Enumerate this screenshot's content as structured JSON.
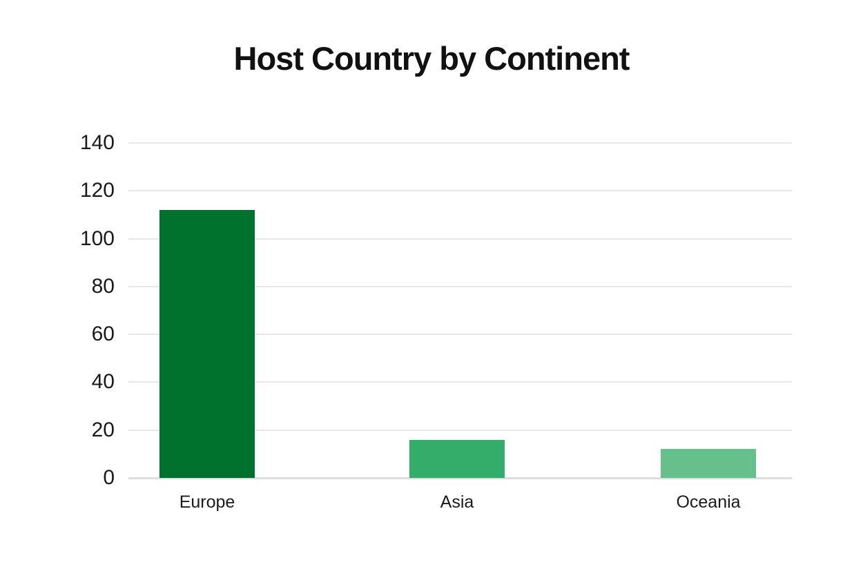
{
  "chart_data": {
    "type": "bar",
    "title": "Host Country by Continent",
    "categories": [
      "Europe",
      "Asia",
      "Oceania"
    ],
    "values": [
      112,
      16,
      12
    ],
    "xlabel": "",
    "ylabel": "",
    "ylim": [
      0,
      140
    ],
    "ytick_step": 20,
    "yticks": [
      0,
      20,
      40,
      60,
      80,
      100,
      120,
      140
    ],
    "grid": true,
    "legend": "none",
    "bar_colors": [
      "#00722e",
      "#34ac6a",
      "#65c08b"
    ],
    "gridline_color": "#e7e7e7",
    "axis_line_color": "#dedede",
    "background_color": "#ffffff",
    "text_color": "#1a1a1a",
    "title_color": "#111111"
  }
}
